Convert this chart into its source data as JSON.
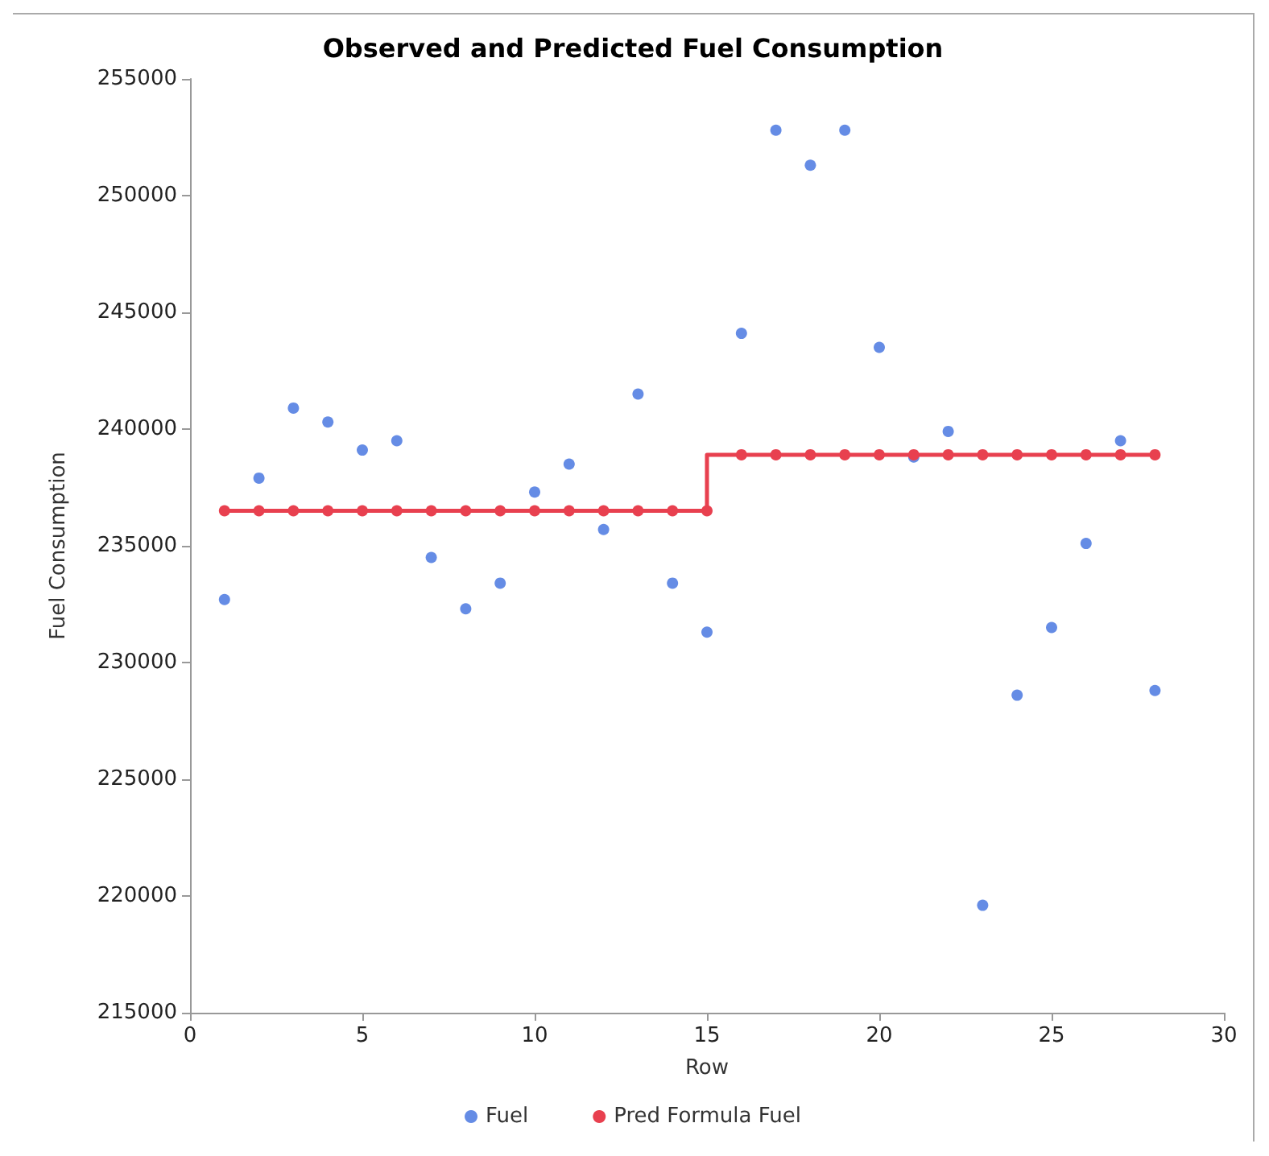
{
  "chart_data": {
    "type": "scatter",
    "title": "Observed and Predicted Fuel Consumption",
    "xlabel": "Row",
    "ylabel": "Fuel Consumption",
    "x": [
      1,
      2,
      3,
      4,
      5,
      6,
      7,
      8,
      9,
      10,
      11,
      12,
      13,
      14,
      15,
      16,
      17,
      18,
      19,
      20,
      21,
      22,
      23,
      24,
      25,
      26,
      27,
      28
    ],
    "series": [
      {
        "name": "Fuel",
        "color": "#3f6fdf",
        "values": [
          232700,
          237900,
          240900,
          240300,
          239100,
          239500,
          234500,
          232300,
          233400,
          237300,
          238500,
          235700,
          241500,
          233400,
          231300,
          244100,
          252800,
          251300,
          252800,
          243500,
          238800,
          239900,
          219600,
          228600,
          231500,
          235100,
          239500,
          228800
        ]
      },
      {
        "name": "Pred Formula Fuel",
        "type": "step",
        "color": "#e8404f",
        "values": [
          236500,
          236500,
          236500,
          236500,
          236500,
          236500,
          236500,
          236500,
          236500,
          236500,
          236500,
          236500,
          236500,
          236500,
          236500,
          238900,
          238900,
          238900,
          238900,
          238900,
          238900,
          238900,
          238900,
          238900,
          238900,
          238900,
          238900,
          238900
        ]
      }
    ],
    "xlim": [
      0,
      30
    ],
    "xticks": [
      0,
      5,
      10,
      15,
      20,
      25,
      30
    ],
    "ylim": [
      215000,
      255000
    ],
    "yticks": [
      215000,
      220000,
      225000,
      230000,
      235000,
      240000,
      245000,
      250000,
      255000
    ],
    "grid": false,
    "legend": "bottom",
    "marker": "circle"
  }
}
